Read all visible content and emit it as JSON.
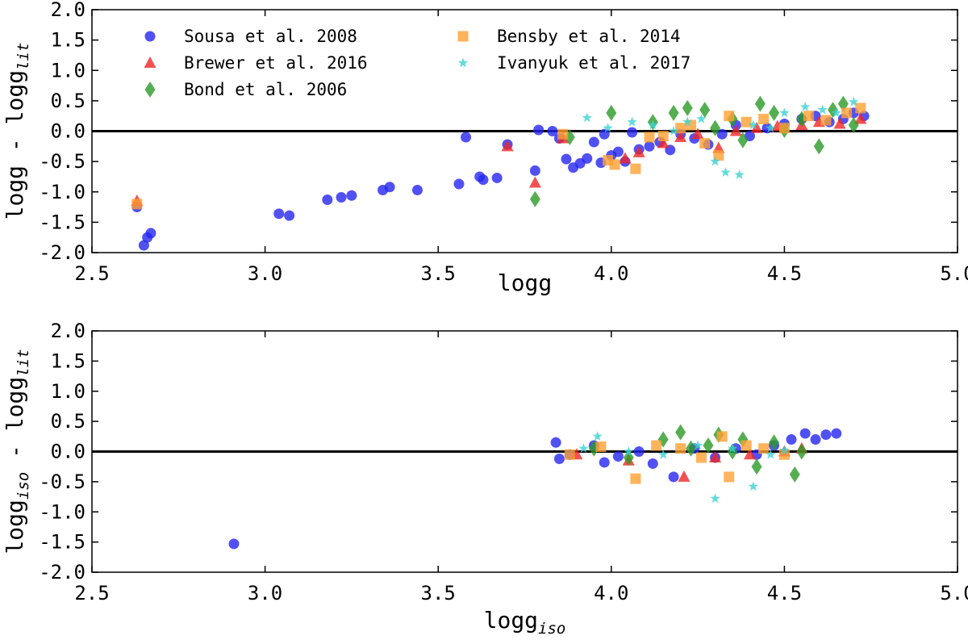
{
  "legend": [
    {
      "key": "sousa",
      "label": "Sousa et al. 2008",
      "marker": "circle",
      "color": "#2626f0"
    },
    {
      "key": "brewer",
      "label": "Brewer et al. 2016",
      "marker": "triangle",
      "color": "#f02626"
    },
    {
      "key": "bond",
      "label": "Bond et al. 2006",
      "marker": "diamond",
      "color": "#2a9a26"
    },
    {
      "key": "bensby",
      "label": "Bensby et al. 2014",
      "marker": "square",
      "color": "#ffa032"
    },
    {
      "key": "ivanyuk",
      "label": "Ivanyuk et al. 2017",
      "marker": "star",
      "color": "#3cd2d2"
    }
  ],
  "chart_data": [
    {
      "type": "scatter",
      "title": "",
      "xlabel": "logg",
      "ylabel": "logg - logg",
      "ylabel_sub": "lit",
      "xlim": [
        2.5,
        5.0
      ],
      "ylim": [
        -2.0,
        2.0
      ],
      "xticks": [
        "2.5",
        "3.0",
        "3.5",
        "4.0",
        "4.5",
        "5.0"
      ],
      "yticks": [
        "2.0",
        "1.5",
        "1.0",
        "0.5",
        "0.0",
        "-0.5",
        "-1.0",
        "-1.5",
        "-2.0"
      ],
      "hline": 0.0,
      "series": [
        {
          "name": "Sousa et al. 2008",
          "points": [
            [
              2.63,
              -1.25
            ],
            [
              2.65,
              -1.88
            ],
            [
              2.66,
              -1.75
            ],
            [
              2.67,
              -1.68
            ],
            [
              3.04,
              -1.36
            ],
            [
              3.07,
              -1.39
            ],
            [
              3.18,
              -1.13
            ],
            [
              3.22,
              -1.09
            ],
            [
              3.25,
              -1.06
            ],
            [
              3.34,
              -0.97
            ],
            [
              3.36,
              -0.92
            ],
            [
              3.44,
              -0.97
            ],
            [
              3.56,
              -0.87
            ],
            [
              3.58,
              -0.1
            ],
            [
              3.62,
              -0.75
            ],
            [
              3.63,
              -0.8
            ],
            [
              3.67,
              -0.77
            ],
            [
              3.7,
              -0.22
            ],
            [
              3.78,
              -0.65
            ],
            [
              3.79,
              0.02
            ],
            [
              3.83,
              0.0
            ],
            [
              3.85,
              -0.12
            ],
            [
              3.87,
              -0.46
            ],
            [
              3.89,
              -0.6
            ],
            [
              3.91,
              -0.53
            ],
            [
              3.93,
              -0.45
            ],
            [
              3.95,
              -0.18
            ],
            [
              3.97,
              -0.52
            ],
            [
              3.98,
              -0.05
            ],
            [
              4.0,
              -0.4
            ],
            [
              4.02,
              -0.34
            ],
            [
              4.04,
              -0.5
            ],
            [
              4.06,
              -0.02
            ],
            [
              4.08,
              -0.3
            ],
            [
              4.11,
              -0.25
            ],
            [
              4.14,
              -0.18
            ],
            [
              4.17,
              -0.31
            ],
            [
              4.2,
              -0.05
            ],
            [
              4.24,
              -0.12
            ],
            [
              4.28,
              -0.22
            ],
            [
              4.32,
              -0.05
            ],
            [
              4.36,
              0.1
            ],
            [
              4.4,
              -0.08
            ],
            [
              4.45,
              0.05
            ],
            [
              4.5,
              0.12
            ],
            [
              4.55,
              0.2
            ],
            [
              4.59,
              0.25
            ],
            [
              4.63,
              0.15
            ],
            [
              4.67,
              0.2
            ],
            [
              4.7,
              0.3
            ],
            [
              4.73,
              0.25
            ]
          ]
        },
        {
          "name": "Brewer et al. 2016",
          "points": [
            [
              2.63,
              -1.15
            ],
            [
              3.7,
              -0.25
            ],
            [
              3.78,
              -0.85
            ],
            [
              3.86,
              -0.12
            ],
            [
              4.04,
              -0.45
            ],
            [
              4.08,
              -0.35
            ],
            [
              4.15,
              -0.2
            ],
            [
              4.2,
              -0.1
            ],
            [
              4.25,
              -0.05
            ],
            [
              4.31,
              -0.28
            ],
            [
              4.36,
              0.0
            ],
            [
              4.42,
              0.05
            ],
            [
              4.48,
              0.08
            ],
            [
              4.55,
              0.1
            ],
            [
              4.6,
              0.15
            ],
            [
              4.66,
              0.12
            ],
            [
              4.72,
              0.2
            ]
          ]
        },
        {
          "name": "Bond et al. 2006",
          "points": [
            [
              3.78,
              -1.12
            ],
            [
              3.88,
              -0.1
            ],
            [
              4.0,
              0.3
            ],
            [
              4.12,
              0.15
            ],
            [
              4.18,
              0.3
            ],
            [
              4.22,
              0.38
            ],
            [
              4.27,
              0.35
            ],
            [
              4.3,
              0.05
            ],
            [
              4.35,
              0.2
            ],
            [
              4.38,
              -0.15
            ],
            [
              4.43,
              0.45
            ],
            [
              4.47,
              0.3
            ],
            [
              4.5,
              0.02
            ],
            [
              4.55,
              0.2
            ],
            [
              4.6,
              -0.25
            ],
            [
              4.64,
              0.35
            ],
            [
              4.67,
              0.45
            ],
            [
              4.7,
              0.1
            ]
          ]
        },
        {
          "name": "Bensby et al. 2014",
          "points": [
            [
              2.63,
              -1.2
            ],
            [
              3.86,
              -0.05
            ],
            [
              3.99,
              -0.48
            ],
            [
              4.01,
              -0.55
            ],
            [
              4.07,
              -0.62
            ],
            [
              4.11,
              -0.1
            ],
            [
              4.15,
              -0.08
            ],
            [
              4.2,
              0.05
            ],
            [
              4.23,
              0.1
            ],
            [
              4.27,
              -0.2
            ],
            [
              4.31,
              -0.4
            ],
            [
              4.34,
              0.25
            ],
            [
              4.39,
              0.15
            ],
            [
              4.44,
              0.2
            ],
            [
              4.5,
              0.05
            ],
            [
              4.57,
              0.25
            ],
            [
              4.62,
              0.18
            ],
            [
              4.68,
              0.3
            ],
            [
              4.72,
              0.38
            ]
          ]
        },
        {
          "name": "Ivanyuk et al. 2017",
          "points": [
            [
              3.93,
              0.22
            ],
            [
              3.99,
              0.05
            ],
            [
              4.06,
              0.15
            ],
            [
              4.12,
              0.1
            ],
            [
              4.18,
              0.0
            ],
            [
              4.22,
              0.15
            ],
            [
              4.26,
              0.2
            ],
            [
              4.3,
              -0.5
            ],
            [
              4.33,
              -0.68
            ],
            [
              4.37,
              -0.72
            ],
            [
              4.41,
              0.1
            ],
            [
              4.46,
              0.05
            ],
            [
              4.5,
              0.3
            ],
            [
              4.56,
              0.4
            ],
            [
              4.61,
              0.35
            ],
            [
              4.65,
              0.3
            ],
            [
              4.7,
              0.48
            ]
          ]
        }
      ]
    },
    {
      "type": "scatter",
      "title": "",
      "xlabel": "logg",
      "xlabel_sub": "iso",
      "ylabel": "logg - logg",
      "ylabel_sub_1": "iso",
      "ylabel_sub_2": "lit",
      "xlim": [
        2.5,
        5.0
      ],
      "ylim": [
        -2.0,
        2.0
      ],
      "xticks": [
        "2.5",
        "3.0",
        "3.5",
        "4.0",
        "4.5",
        "5.0"
      ],
      "yticks": [
        "2.0",
        "1.5",
        "1.0",
        "0.5",
        "0.0",
        "-0.5",
        "-1.0",
        "-1.5",
        "-2.0"
      ],
      "hline": 0.0,
      "series": [
        {
          "name": "Sousa et al. 2008",
          "points": [
            [
              2.91,
              -1.53
            ],
            [
              3.84,
              0.15
            ],
            [
              3.85,
              -0.12
            ],
            [
              3.88,
              -0.05
            ],
            [
              3.95,
              0.1
            ],
            [
              3.98,
              -0.18
            ],
            [
              4.02,
              -0.08
            ],
            [
              4.08,
              0.0
            ],
            [
              4.12,
              -0.2
            ],
            [
              4.18,
              -0.42
            ],
            [
              4.24,
              0.05
            ],
            [
              4.3,
              -0.1
            ],
            [
              4.36,
              0.05
            ],
            [
              4.42,
              -0.05
            ],
            [
              4.47,
              0.1
            ],
            [
              4.52,
              0.2
            ],
            [
              4.56,
              0.3
            ],
            [
              4.59,
              0.2
            ],
            [
              4.62,
              0.28
            ],
            [
              4.65,
              0.3
            ]
          ]
        },
        {
          "name": "Brewer et al. 2016",
          "points": [
            [
              3.9,
              -0.05
            ],
            [
              4.05,
              -0.15
            ],
            [
              4.21,
              -0.42
            ],
            [
              4.3,
              -0.1
            ],
            [
              4.4,
              -0.05
            ],
            [
              4.5,
              0.0
            ],
            [
              4.55,
              0.05
            ]
          ]
        },
        {
          "name": "Bond et al. 2006",
          "points": [
            [
              3.95,
              0.05
            ],
            [
              4.05,
              -0.1
            ],
            [
              4.15,
              0.2
            ],
            [
              4.2,
              0.32
            ],
            [
              4.23,
              0.05
            ],
            [
              4.28,
              0.1
            ],
            [
              4.31,
              0.28
            ],
            [
              4.35,
              0.0
            ],
            [
              4.38,
              0.2
            ],
            [
              4.42,
              -0.25
            ],
            [
              4.47,
              0.15
            ],
            [
              4.53,
              -0.38
            ],
            [
              4.55,
              0.0
            ]
          ]
        },
        {
          "name": "Bensby et al. 2014",
          "points": [
            [
              3.88,
              -0.05
            ],
            [
              3.97,
              0.08
            ],
            [
              4.07,
              -0.45
            ],
            [
              4.13,
              0.1
            ],
            [
              4.2,
              0.05
            ],
            [
              4.26,
              -0.1
            ],
            [
              4.32,
              0.25
            ],
            [
              4.34,
              -0.42
            ],
            [
              4.39,
              0.1
            ],
            [
              4.44,
              0.05
            ],
            [
              4.5,
              -0.05
            ]
          ]
        },
        {
          "name": "Ivanyuk et al. 2017",
          "points": [
            [
              3.92,
              0.05
            ],
            [
              3.96,
              0.25
            ],
            [
              4.05,
              0.0
            ],
            [
              4.15,
              -0.05
            ],
            [
              4.25,
              0.1
            ],
            [
              4.3,
              -0.78
            ],
            [
              4.35,
              0.05
            ],
            [
              4.41,
              -0.58
            ],
            [
              4.46,
              -0.05
            ],
            [
              4.5,
              0.02
            ]
          ]
        }
      ]
    }
  ]
}
